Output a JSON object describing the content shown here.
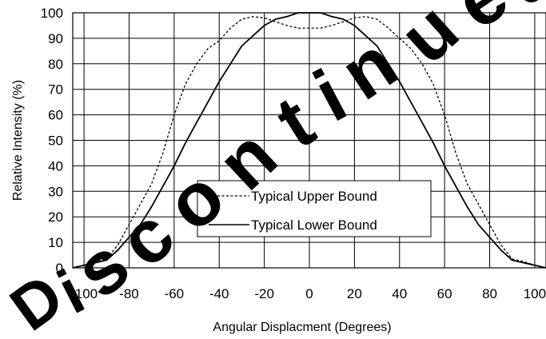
{
  "chart_data": {
    "type": "line",
    "title": "",
    "xlabel": "Angular Displacment (Degrees)",
    "ylabel": "Relative Intensity (%)",
    "xlim": [
      -105,
      105
    ],
    "ylim": [
      0,
      100
    ],
    "xticks": [
      -100,
      -80,
      -60,
      -40,
      -20,
      0,
      20,
      40,
      60,
      80,
      100
    ],
    "yticks": [
      0,
      10,
      20,
      30,
      40,
      50,
      60,
      70,
      80,
      90,
      100
    ],
    "grid": true,
    "legend_position": "lower-center",
    "series": [
      {
        "name": "Typical Upper Bound",
        "style": "dashed",
        "points": [
          [
            -105,
            0
          ],
          [
            -100,
            1
          ],
          [
            -95,
            2.5
          ],
          [
            -90,
            3.5
          ],
          [
            -85,
            9
          ],
          [
            -80,
            17
          ],
          [
            -75,
            25
          ],
          [
            -70,
            33
          ],
          [
            -65,
            45
          ],
          [
            -60,
            60
          ],
          [
            -55,
            72
          ],
          [
            -50,
            80
          ],
          [
            -45,
            86
          ],
          [
            -40,
            89
          ],
          [
            -35,
            94
          ],
          [
            -30,
            97.5
          ],
          [
            -25,
            98.5
          ],
          [
            -20,
            98
          ],
          [
            -15,
            96.5
          ],
          [
            -10,
            95
          ],
          [
            -5,
            94
          ],
          [
            0,
            94
          ],
          [
            5,
            94
          ],
          [
            10,
            95
          ],
          [
            15,
            96.5
          ],
          [
            20,
            98
          ],
          [
            25,
            98.5
          ],
          [
            30,
            97.5
          ],
          [
            35,
            94
          ],
          [
            40,
            90
          ],
          [
            45,
            86
          ],
          [
            50,
            80
          ],
          [
            55,
            72
          ],
          [
            60,
            60
          ],
          [
            65,
            45
          ],
          [
            70,
            33
          ],
          [
            75,
            25
          ],
          [
            80,
            17
          ],
          [
            85,
            9
          ],
          [
            90,
            3.5
          ],
          [
            95,
            2.5
          ],
          [
            100,
            1
          ],
          [
            105,
            0
          ]
        ]
      },
      {
        "name": "Typical Lower Bound",
        "style": "solid",
        "points": [
          [
            -105,
            0
          ],
          [
            -100,
            1
          ],
          [
            -95,
            2
          ],
          [
            -90,
            3
          ],
          [
            -85,
            7
          ],
          [
            -80,
            12
          ],
          [
            -75,
            17
          ],
          [
            -70,
            24
          ],
          [
            -65,
            32
          ],
          [
            -60,
            40
          ],
          [
            -55,
            49
          ],
          [
            -50,
            57
          ],
          [
            -45,
            65
          ],
          [
            -40,
            73
          ],
          [
            -35,
            80
          ],
          [
            -30,
            87
          ],
          [
            -25,
            91
          ],
          [
            -20,
            95
          ],
          [
            -15,
            97.5
          ],
          [
            -10,
            98.5
          ],
          [
            -5,
            100
          ],
          [
            0,
            100
          ],
          [
            5,
            100
          ],
          [
            10,
            98.5
          ],
          [
            15,
            97.5
          ],
          [
            20,
            95
          ],
          [
            25,
            91
          ],
          [
            30,
            87
          ],
          [
            35,
            80
          ],
          [
            40,
            73
          ],
          [
            45,
            65
          ],
          [
            50,
            57
          ],
          [
            55,
            49
          ],
          [
            60,
            40
          ],
          [
            65,
            32
          ],
          [
            70,
            24
          ],
          [
            75,
            17
          ],
          [
            80,
            12
          ],
          [
            85,
            7
          ],
          [
            90,
            3
          ],
          [
            95,
            2
          ],
          [
            100,
            1
          ],
          [
            105,
            0
          ]
        ]
      }
    ]
  },
  "watermark": {
    "text": "Discontinued",
    "color": "#000000"
  },
  "colors": {
    "grid": "#000000",
    "line": "#000000",
    "background": "#ffffff"
  }
}
